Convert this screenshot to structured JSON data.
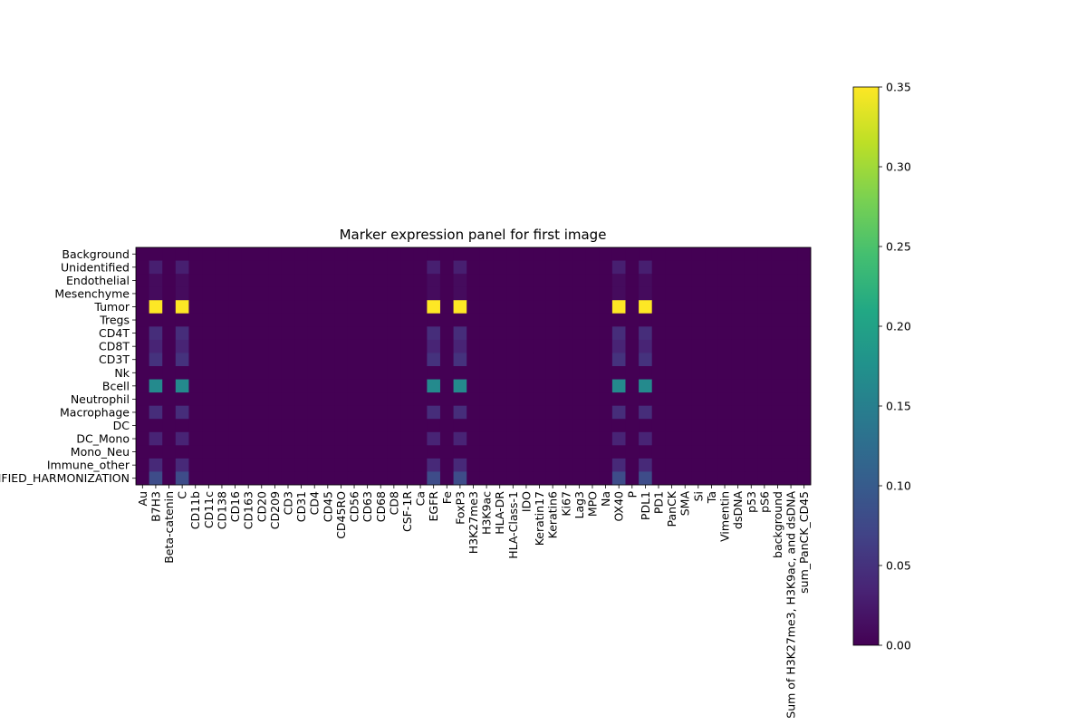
{
  "chart_data": {
    "type": "heatmap",
    "title": "Marker expression panel for first image",
    "xlabel": "",
    "ylabel": "",
    "rows": [
      "Background",
      "Unidentified",
      "Endothelial",
      "Mesenchyme",
      "Tumor",
      "Tregs",
      "CD4T",
      "CD8T",
      "CD3T",
      "Nk",
      "Bcell",
      "Neutrophil",
      "Macrophage",
      "DC",
      "DC_Mono",
      "Mono_Neu",
      "Immune_other",
      "UNCLASSIFIED_HARMONIZATION"
    ],
    "columns": [
      "Au",
      "B7H3",
      "Beta-catenin",
      "C",
      "CD11b",
      "CD11c",
      "CD138",
      "CD16",
      "CD163",
      "CD20",
      "CD209",
      "CD3",
      "CD31",
      "CD4",
      "CD45",
      "CD45RO",
      "CD56",
      "CD63",
      "CD68",
      "CD8",
      "CSF-1R",
      "Ca",
      "EGFR",
      "Fe",
      "FoxP3",
      "H3K27me3",
      "H3K9ac",
      "HLA-DR",
      "HLA-Class-1",
      "IDO",
      "Keratin17",
      "Keratin6",
      "Ki67",
      "Lag3",
      "MPO",
      "Na",
      "OX40",
      "P",
      "PDL1",
      "PD1",
      "PanCK",
      "SMA",
      "Si",
      "Ta",
      "Vimentin",
      "dsDNA",
      "p53",
      "pS6",
      "background",
      "Sum of H3K27me3, H3K9ac, and dsDNA",
      "sum_PanCK_CD45"
    ],
    "active_columns": [
      1,
      3,
      22,
      24,
      36,
      38
    ],
    "row_values_at_active_columns": [
      0.0,
      0.03,
      0.01,
      0.01,
      0.35,
      0.0,
      0.045,
      0.035,
      0.05,
      0.0,
      0.165,
      0.0,
      0.045,
      0.0,
      0.035,
      0.0,
      0.04,
      0.08
    ],
    "colorbar": {
      "range": [
        0.0,
        0.35
      ],
      "ticks": [
        "0.00",
        "0.05",
        "0.10",
        "0.15",
        "0.20",
        "0.25",
        "0.30",
        "0.35"
      ],
      "colormap": "viridis"
    }
  }
}
